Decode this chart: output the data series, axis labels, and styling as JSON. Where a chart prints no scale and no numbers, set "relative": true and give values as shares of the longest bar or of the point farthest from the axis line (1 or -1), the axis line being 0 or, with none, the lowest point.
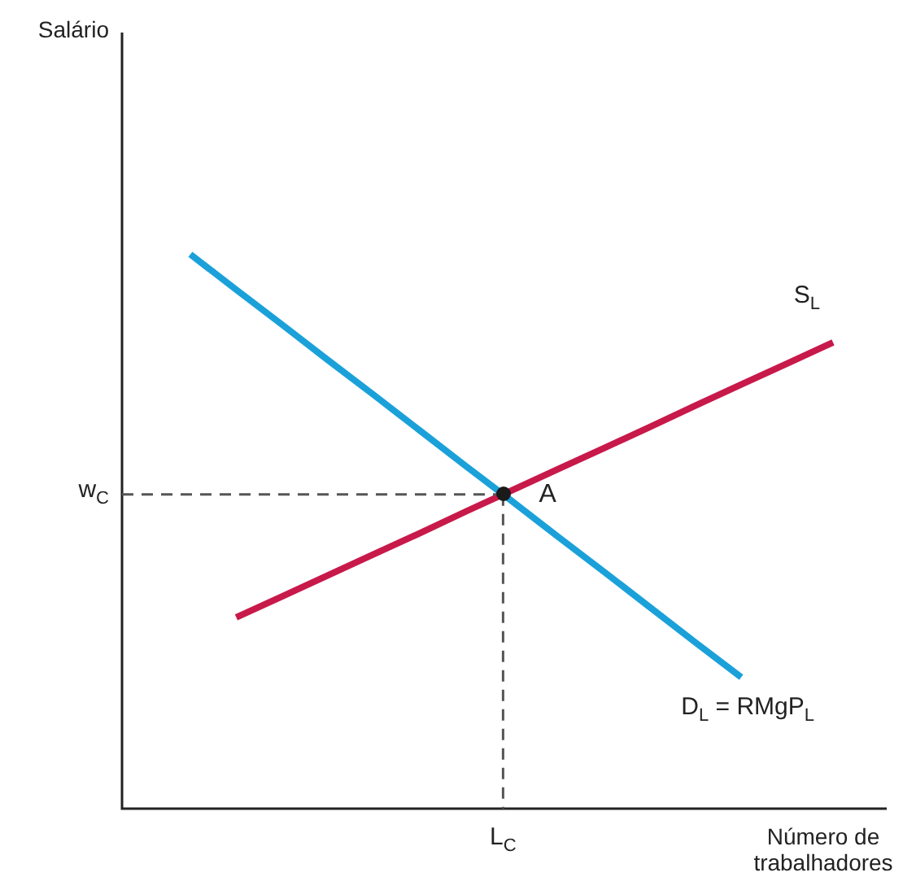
{
  "chart_data": {
    "type": "line",
    "relative": true,
    "xlabel": "Número de trabalhadores",
    "marker": "none",
    "line_style": "solid",
    "categories": [
      null,
      null,
      null,
      null,
      null,
      null,
      null,
      null,
      null,
      null,
      null,
      null,
      null,
      null,
      null
    ],
    "series": [
      {
        "name": "D$_{L}$ = RMgP$_{L}$",
        "color": "#1ba1d9",
        "values": [
          1,
          0.936,
          0.873,
          0.809,
          0.746,
          0.682,
          0.618,
          0.555,
          0.491,
          0.428,
          0.364,
          0.3,
          0.237,
          null,
          null
        ]
      },
      {
        "name": "S$_{L}$",
        "color": "#c8194b",
        "values": [
          null,
          0.345,
          0.383,
          0.421,
          0.459,
          0.497,
          0.536,
          0.574,
          0.612,
          0.65,
          0.688,
          0.727,
          0.765,
          0.803,
          0.841
        ]
      }
    ],
    "ref_lines": [
      {
        "axis": "y",
        "value": 0.567,
        "label": "w$_{C}$",
        "color": "#555555",
        "line_style": "dashed"
      }
    ],
    "annotations": [
      "Salário",
      "A",
      "L$_{C}$"
    ]
  }
}
